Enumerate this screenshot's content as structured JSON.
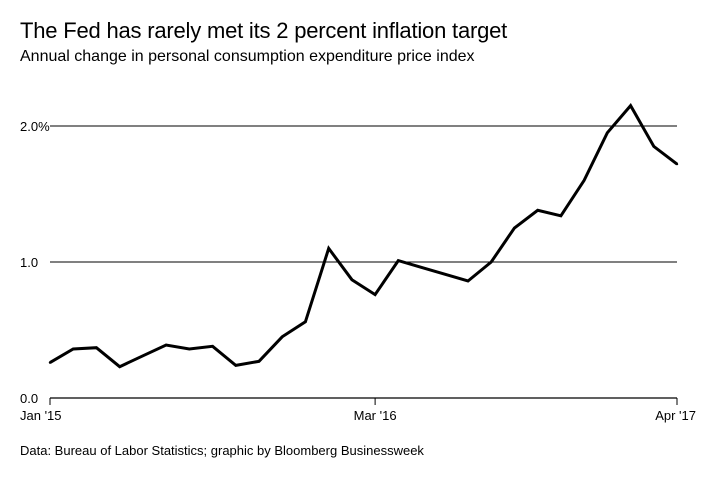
{
  "chart_data": {
    "type": "line",
    "title": "The Fed has rarely met its 2 percent inflation target",
    "subtitle": "Annual change in personal consumption expenditure price index",
    "source": "Data: Bureau of Labor Statistics; graphic by Bloomberg Businessweek",
    "xlabel": "",
    "ylabel": "",
    "ylim": [
      0,
      2.0
    ],
    "grid": true,
    "y_ticks": [
      {
        "value": 0,
        "label": "0.0"
      },
      {
        "value": 1,
        "label": "1.0"
      },
      {
        "value": 2,
        "label": "2.0%"
      }
    ],
    "x_ticks": [
      {
        "index": 0,
        "label": "Jan '15"
      },
      {
        "index": 14,
        "label": "Mar '16"
      },
      {
        "index": 27,
        "label": "Apr '17"
      }
    ],
    "x": [
      "Jan 2015",
      "Feb 2015",
      "Mar 2015",
      "Apr 2015",
      "May 2015",
      "Jun 2015",
      "Jul 2015",
      "Aug 2015",
      "Sep 2015",
      "Oct 2015",
      "Nov 2015",
      "Dec 2015",
      "Jan 2016",
      "Feb 2016",
      "Mar 2016",
      "Apr 2016",
      "May 2016",
      "Jun 2016",
      "Jul 2016",
      "Aug 2016",
      "Sep 2016",
      "Oct 2016",
      "Nov 2016",
      "Dec 2016",
      "Jan 2017",
      "Feb 2017",
      "Mar 2017",
      "Apr 2017"
    ],
    "series": [
      {
        "name": "PCE price index, annual change (%)",
        "values": [
          0.26,
          0.36,
          0.37,
          0.23,
          0.31,
          0.39,
          0.36,
          0.38,
          0.24,
          0.27,
          0.45,
          0.56,
          1.1,
          0.87,
          0.76,
          1.01,
          0.96,
          0.91,
          0.86,
          1.0,
          1.25,
          1.38,
          1.34,
          1.6,
          1.95,
          2.15,
          1.85,
          1.72
        ]
      }
    ]
  }
}
